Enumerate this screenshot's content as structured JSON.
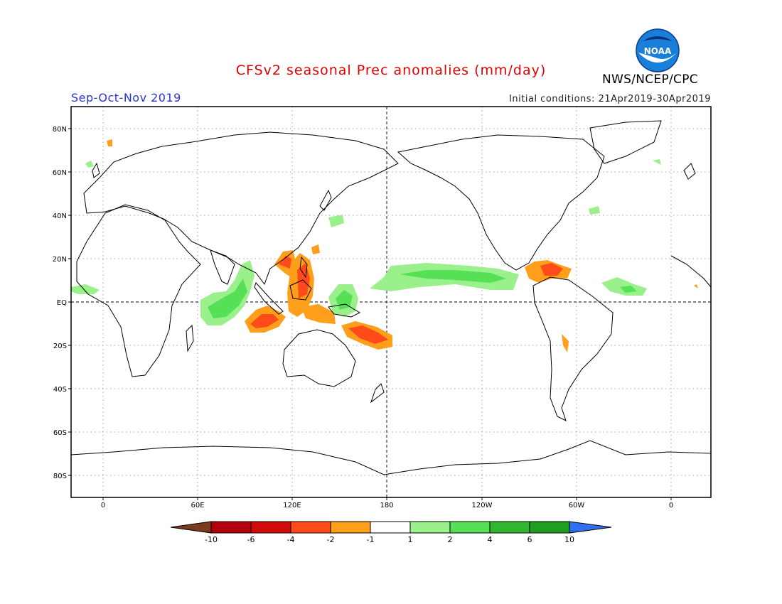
{
  "header": {
    "title": "CFSv2 seasonal Prec anomalies (mm/day)",
    "season": "Sep-Oct-Nov 2019",
    "initial_conditions": "Initial conditions: 21Apr2019-30Apr2019",
    "agency": "NWS/NCEP/CPC",
    "logo_text": "NOAA"
  },
  "colors": {
    "title": "#e00000",
    "season": "#2a35d8",
    "land_outline": "#000000",
    "grid": "#888888"
  },
  "map": {
    "lat_labels": [
      "80N",
      "60N",
      "40N",
      "20N",
      "EQ",
      "20S",
      "40S",
      "60S",
      "80S"
    ],
    "lon_labels": [
      "0",
      "60E",
      "120E",
      "180",
      "120W",
      "60W",
      "0"
    ]
  },
  "legend": {
    "boundaries": [
      "-10",
      "-6",
      "-4",
      "-2",
      "-1",
      "1",
      "2",
      "4",
      "6",
      "10"
    ],
    "colors": [
      "#7a3b1e",
      "#b3000a",
      "#d10a0a",
      "#ff4a1a",
      "#ff9e1a",
      "#ffffff",
      "#9af08a",
      "#55e055",
      "#2fb82f",
      "#1f9e1f",
      "#2f6ff0"
    ]
  }
}
